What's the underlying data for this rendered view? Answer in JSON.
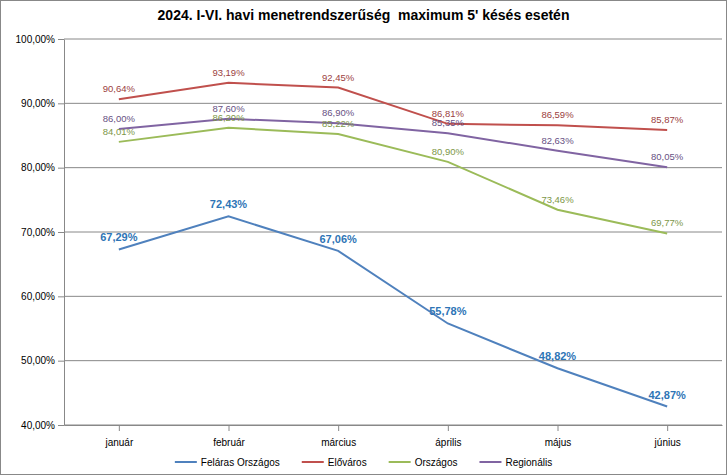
{
  "chart_data": {
    "type": "line",
    "title": "2024. I-VI. havi menetrendszerűség  maximum 5' késés esetén",
    "categories": [
      "január",
      "február",
      "március",
      "április",
      "május",
      "június"
    ],
    "series": [
      {
        "name": "Feláras Országos",
        "color": "#4f81bd",
        "values": [
          67.29,
          72.43,
          67.06,
          55.78,
          48.82,
          42.87
        ],
        "value_labels": [
          "67,29%",
          "72,43%",
          "67,06%",
          "55,78%",
          "48,82%",
          "42,87%"
        ]
      },
      {
        "name": "Előváros",
        "color": "#c0504d",
        "values": [
          90.64,
          93.19,
          92.45,
          86.81,
          86.59,
          85.87
        ],
        "value_labels": [
          "90,64%",
          "93,19%",
          "92,45%",
          "86,81%",
          "86,59%",
          "85,87%"
        ]
      },
      {
        "name": "Országos",
        "color": "#9bbb59",
        "values": [
          84.01,
          86.2,
          85.22,
          80.9,
          73.46,
          69.77
        ],
        "value_labels": [
          "84,01%",
          "86,20%",
          "85,22%",
          "80,90%",
          "73,46%",
          "69,77%"
        ]
      },
      {
        "name": "Regionális",
        "color": "#8064a2",
        "values": [
          86.0,
          87.6,
          86.9,
          85.35,
          82.63,
          80.05
        ],
        "value_labels": [
          "86,00%",
          "87,60%",
          "86,90%",
          "85,35%",
          "82,63%",
          "80,05%"
        ]
      }
    ],
    "ylim": [
      40,
      100
    ],
    "yticks": [
      {
        "value": 40,
        "label": "40,00%"
      },
      {
        "value": 50,
        "label": "50,00%"
      },
      {
        "value": 60,
        "label": "60,00%"
      },
      {
        "value": 70,
        "label": "70,00%"
      },
      {
        "value": 80,
        "label": "80,00%"
      },
      {
        "value": 90,
        "label": "90,00%"
      },
      {
        "value": 100,
        "label": "100,00%"
      }
    ],
    "grid": true,
    "legend": "bottom",
    "data_labels": true
  }
}
